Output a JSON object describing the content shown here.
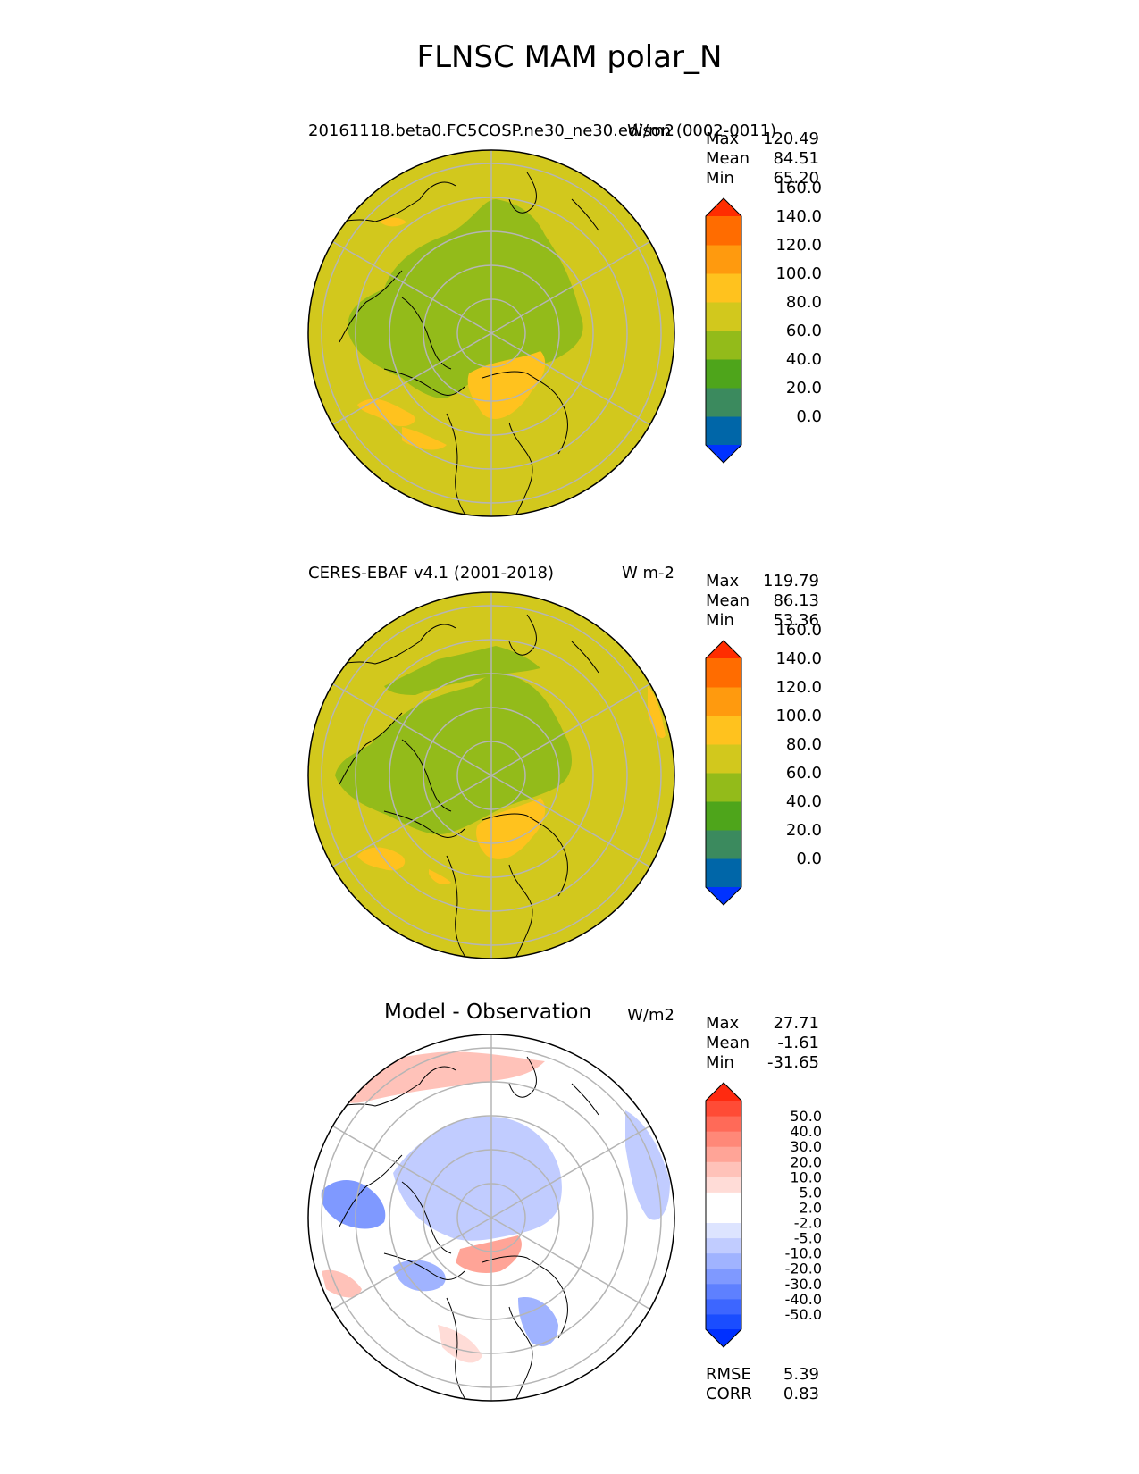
{
  "title": "FLNSC MAM polar_N",
  "panels": [
    {
      "id": "test",
      "left_title": "20161118.beta0.FC5COSP.ne30_ne30.edison (0002-0011)",
      "center_title": "",
      "units": "W/m2",
      "stats": {
        "max": "120.49",
        "mean": "84.51",
        "min": "65.20"
      },
      "colorbar": {
        "colors": [
          "#0032ff",
          "#0066a8",
          "#3b8a5e",
          "#4ea51b",
          "#93bb1a",
          "#d2c81d",
          "#ffc21e",
          "#ff9a0e",
          "#ff6c00",
          "#ff2d00"
        ],
        "ticks": [
          "0.0",
          "20.0",
          "40.0",
          "60.0",
          "80.0",
          "100.0",
          "120.0",
          "140.0",
          "160.0"
        ]
      }
    },
    {
      "id": "reference",
      "left_title": "CERES-EBAF v4.1 (2001-2018)",
      "center_title": "",
      "units": "W m-2",
      "stats": {
        "max": "119.79",
        "mean": "86.13",
        "min": "53.36"
      },
      "colorbar": {
        "colors": [
          "#0032ff",
          "#0066a8",
          "#3b8a5e",
          "#4ea51b",
          "#93bb1a",
          "#d2c81d",
          "#ffc21e",
          "#ff9a0e",
          "#ff6c00",
          "#ff2d00"
        ],
        "ticks": [
          "0.0",
          "20.0",
          "40.0",
          "60.0",
          "80.0",
          "100.0",
          "120.0",
          "140.0",
          "160.0"
        ]
      }
    },
    {
      "id": "diff",
      "left_title": "",
      "center_title": "Model - Observation",
      "units": "W/m2",
      "stats": {
        "max": "27.71",
        "mean": "-1.61",
        "min": "-31.65"
      },
      "colorbar": {
        "colors": [
          "#0030ff",
          "#1a4dff",
          "#3d66ff",
          "#5e80ff",
          "#7f99ff",
          "#a0b3ff",
          "#c1ccff",
          "#dde4ff",
          "#ffffff",
          "#ffffff",
          "#ffdcd7",
          "#ffc2b9",
          "#ffa497",
          "#ff8878",
          "#ff6a58",
          "#ff4b36",
          "#ff2a10"
        ],
        "ticks": [
          "-50.0",
          "-40.0",
          "-30.0",
          "-20.0",
          "-10.0",
          "-5.0",
          "-2.0",
          "2.0",
          "5.0",
          "10.0",
          "20.0",
          "30.0",
          "40.0",
          "50.0"
        ]
      },
      "rmse": {
        "label": "RMSE",
        "value": "5.39"
      },
      "corr": {
        "label": "CORR",
        "value": "0.83"
      }
    }
  ],
  "stat_labels": {
    "max": "Max",
    "mean": "Mean",
    "min": "Min"
  }
}
